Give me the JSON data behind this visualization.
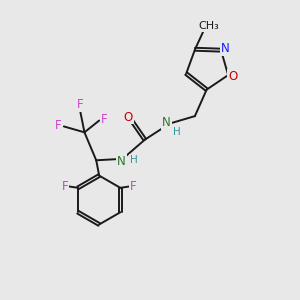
{
  "background_color": "#e8e8e8",
  "bond_color": "#1a1a1a",
  "figsize": [
    3.0,
    3.0
  ],
  "dpi": 100,
  "colors": {
    "O": "#cc0000",
    "N": "#1a1aff",
    "F": "#cc44cc",
    "H": "#2a9a9a",
    "C": "#1a1a1a",
    "NH": "#2a7a2a"
  }
}
